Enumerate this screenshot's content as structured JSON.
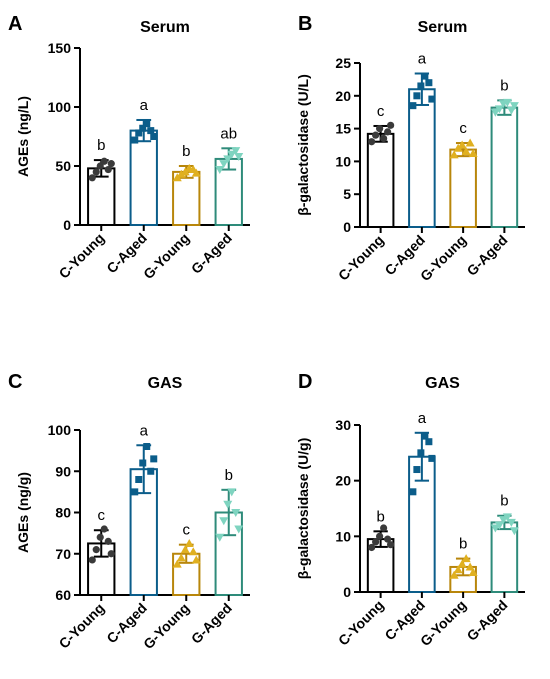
{
  "chart_data": [
    {
      "panel": "A",
      "type": "bar",
      "title": "Serum",
      "ylabel": "AGEs (ng/L)",
      "ylim": [
        0,
        150
      ],
      "yticks": [
        "0",
        "50",
        "100",
        "150"
      ],
      "categories": [
        "C-Young",
        "C-Aged",
        "G-Young",
        "G-Aged"
      ],
      "values": [
        48,
        80,
        45,
        56
      ],
      "errors": [
        7,
        9,
        5,
        9
      ],
      "letters": [
        "b",
        "a",
        "b",
        "ab"
      ],
      "points": [
        [
          40,
          45,
          50,
          54,
          47,
          52
        ],
        [
          72,
          78,
          82,
          86,
          80,
          75
        ],
        [
          40,
          43,
          45,
          48,
          47,
          44
        ],
        [
          47,
          52,
          56,
          60,
          63,
          58
        ]
      ]
    },
    {
      "panel": "B",
      "type": "bar",
      "title": "Serum",
      "ylabel": "β-galactosidase (U/L)",
      "ylim": [
        0,
        25
      ],
      "yticks": [
        "0",
        "5",
        "10",
        "15",
        "20",
        "25"
      ],
      "categories": [
        "C-Young",
        "C-Aged",
        "G-Young",
        "G-Aged"
      ],
      "values": [
        14.2,
        21.0,
        11.8,
        18.2
      ],
      "errors": [
        1.2,
        2.4,
        1.0,
        1.1
      ],
      "letters": [
        "c",
        "a",
        "c",
        "b"
      ],
      "points": [
        [
          13,
          14,
          15,
          13.5,
          14.5,
          15.5
        ],
        [
          18.5,
          20,
          21.5,
          23,
          22,
          19.5
        ],
        [
          11,
          12,
          12.5,
          11.5,
          12.8,
          11.2
        ],
        [
          17.5,
          18,
          18.8,
          19,
          17.8,
          18.5
        ]
      ]
    },
    {
      "panel": "C",
      "type": "bar",
      "title": "GAS",
      "ylabel": "AGEs (ng/g)",
      "ylim": [
        60,
        100
      ],
      "yticks": [
        "60",
        "70",
        "80",
        "90",
        "100"
      ],
      "categories": [
        "C-Young",
        "C-Aged",
        "G-Young",
        "G-Aged"
      ],
      "values": [
        72.5,
        90.5,
        70,
        80
      ],
      "errors": [
        3.2,
        5.8,
        2.2,
        5.5
      ],
      "letters": [
        "c",
        "a",
        "c",
        "b"
      ],
      "points": [
        [
          68.5,
          71,
          74,
          76,
          73,
          70
        ],
        [
          85,
          88,
          92,
          96,
          90,
          93
        ],
        [
          67.5,
          69,
          71,
          72.5,
          70.5,
          68.5
        ],
        [
          74,
          78,
          82,
          85,
          80,
          76
        ]
      ]
    },
    {
      "panel": "D",
      "type": "bar",
      "title": "GAS",
      "ylabel": "β-galactosidase (U/g)",
      "ylim": [
        0,
        30
      ],
      "yticks": [
        "0",
        "10",
        "20",
        "30"
      ],
      "categories": [
        "C-Young",
        "C-Aged",
        "G-Young",
        "G-Aged"
      ],
      "values": [
        9.5,
        24.3,
        4.5,
        12.5
      ],
      "errors": [
        1.4,
        4.3,
        1.5,
        1.2
      ],
      "letters": [
        "b",
        "a",
        "b",
        "b"
      ],
      "points": [
        [
          8,
          9,
          10,
          11.5,
          9.5,
          8.5
        ],
        [
          18,
          22,
          25,
          28,
          27,
          24
        ],
        [
          3,
          4,
          5,
          6,
          4.5,
          3.5
        ],
        [
          11.5,
          12,
          13,
          13.5,
          12.5,
          11
        ]
      ]
    }
  ],
  "series_colors": [
    "#000000",
    "#0b5d8a",
    "#b8860b",
    "#2e8b7a"
  ],
  "point_colors": [
    "#3a3a3a",
    "#0b5d8a",
    "#e0b020",
    "#7fd4c0"
  ],
  "point_shapes": [
    "circle",
    "square",
    "triangle-up",
    "triangle-down"
  ]
}
